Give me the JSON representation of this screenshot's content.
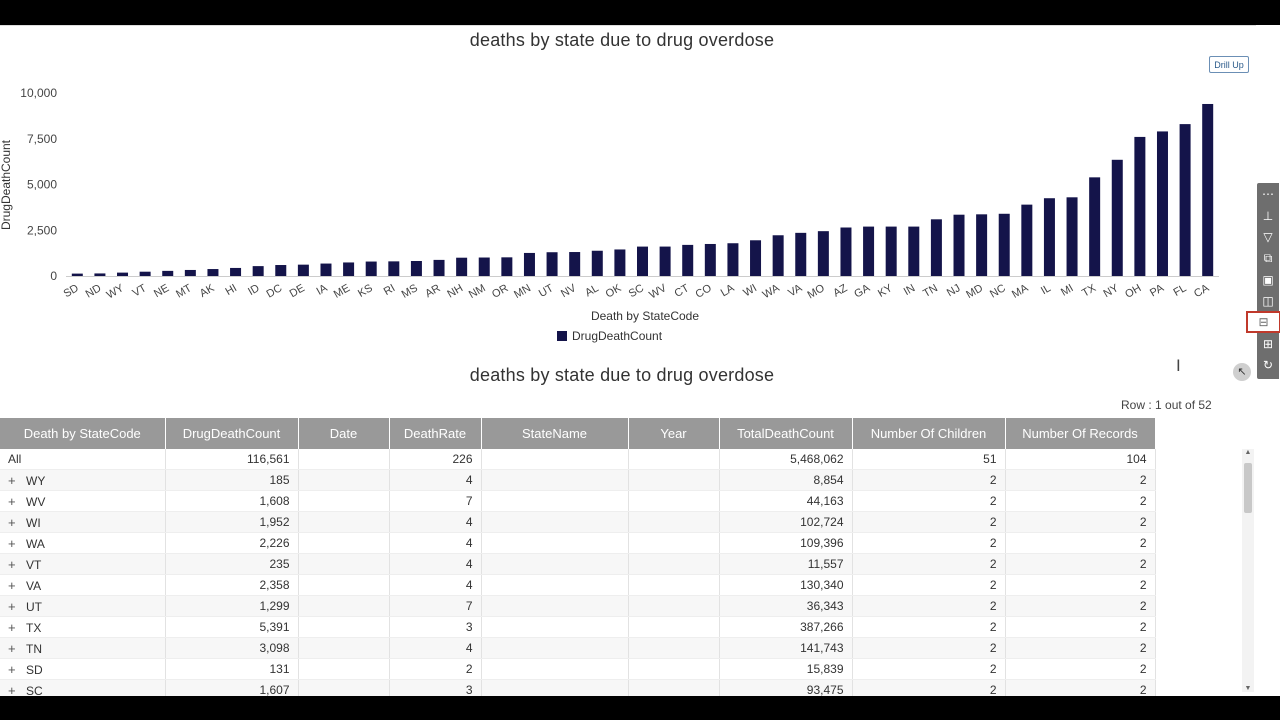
{
  "drill_up_label": "Drill Up",
  "grid_title": "deaths by state due to drug overdose",
  "row_info": "Row : 1 out of 52",
  "toolbar_icons": [
    "grip-icon",
    "pin-icon",
    "filter-icon",
    "export-icon",
    "layers-icon",
    "cube-icon",
    "pivot-icon",
    "grid-icon",
    "refresh-icon"
  ],
  "colors": {
    "bar": "#14144a",
    "header_bg": "#999999",
    "accent_border": "#c0392b"
  },
  "chart_data": {
    "type": "bar",
    "title": "deaths by state due to drug overdose",
    "xlabel": "Death by StateCode",
    "ylabel": "DrugDeathCount",
    "ylim": [
      0,
      10000
    ],
    "yticks": [
      "0",
      "2,500",
      "5,000",
      "7,500",
      "10,000"
    ],
    "legend_position": "bottom",
    "categories": [
      "SD",
      "ND",
      "WY",
      "VT",
      "NE",
      "MT",
      "AK",
      "HI",
      "ID",
      "DC",
      "DE",
      "IA",
      "ME",
      "KS",
      "RI",
      "MS",
      "AR",
      "NH",
      "NM",
      "OR",
      "MN",
      "UT",
      "NV",
      "AL",
      "OK",
      "SC",
      "WV",
      "CT",
      "CO",
      "LA",
      "WI",
      "WA",
      "VA",
      "MO",
      "AZ",
      "GA",
      "KY",
      "IN",
      "TN",
      "NJ",
      "MD",
      "NC",
      "MA",
      "IL",
      "MI",
      "TX",
      "NY",
      "OH",
      "PA",
      "FL",
      "CA"
    ],
    "series": [
      {
        "name": "DrugDeathCount",
        "values": [
          131,
          140,
          185,
          235,
          280,
          330,
          380,
          440,
          540,
          600,
          620,
          680,
          740,
          790,
          800,
          820,
          880,
          1000,
          1010,
          1020,
          1260,
          1299,
          1310,
          1380,
          1450,
          1607,
          1608,
          1700,
          1750,
          1790,
          1952,
          2226,
          2358,
          2450,
          2650,
          2700,
          2700,
          2700,
          3098,
          3350,
          3370,
          3400,
          3900,
          4250,
          4300,
          5391,
          6350,
          7600,
          7900,
          8300,
          9400
        ]
      }
    ]
  },
  "table": {
    "columns": [
      "Death by StateCode",
      "DrugDeathCount",
      "Date",
      "DeathRate",
      "StateName",
      "Year",
      "TotalDeathCount",
      "Number Of Children",
      "Number Of Records"
    ],
    "rows": [
      {
        "code": "All",
        "expand": "",
        "drug": "116,561",
        "date": "",
        "rate": "226",
        "state": "",
        "year": "",
        "total": "5,468,062",
        "children": "51",
        "records": "104"
      },
      {
        "code": "WY",
        "expand": "+",
        "drug": "185",
        "date": "",
        "rate": "4",
        "state": "",
        "year": "",
        "total": "8,854",
        "children": "2",
        "records": "2"
      },
      {
        "code": "WV",
        "expand": "+",
        "drug": "1,608",
        "date": "",
        "rate": "7",
        "state": "",
        "year": "",
        "total": "44,163",
        "children": "2",
        "records": "2"
      },
      {
        "code": "WI",
        "expand": "+",
        "drug": "1,952",
        "date": "",
        "rate": "4",
        "state": "",
        "year": "",
        "total": "102,724",
        "children": "2",
        "records": "2"
      },
      {
        "code": "WA",
        "expand": "+",
        "drug": "2,226",
        "date": "",
        "rate": "4",
        "state": "",
        "year": "",
        "total": "109,396",
        "children": "2",
        "records": "2"
      },
      {
        "code": "VT",
        "expand": "+",
        "drug": "235",
        "date": "",
        "rate": "4",
        "state": "",
        "year": "",
        "total": "11,557",
        "children": "2",
        "records": "2"
      },
      {
        "code": "VA",
        "expand": "+",
        "drug": "2,358",
        "date": "",
        "rate": "4",
        "state": "",
        "year": "",
        "total": "130,340",
        "children": "2",
        "records": "2"
      },
      {
        "code": "UT",
        "expand": "+",
        "drug": "1,299",
        "date": "",
        "rate": "7",
        "state": "",
        "year": "",
        "total": "36,343",
        "children": "2",
        "records": "2"
      },
      {
        "code": "TX",
        "expand": "+",
        "drug": "5,391",
        "date": "",
        "rate": "3",
        "state": "",
        "year": "",
        "total": "387,266",
        "children": "2",
        "records": "2"
      },
      {
        "code": "TN",
        "expand": "+",
        "drug": "3,098",
        "date": "",
        "rate": "4",
        "state": "",
        "year": "",
        "total": "141,743",
        "children": "2",
        "records": "2"
      },
      {
        "code": "SD",
        "expand": "+",
        "drug": "131",
        "date": "",
        "rate": "2",
        "state": "",
        "year": "",
        "total": "15,839",
        "children": "2",
        "records": "2"
      },
      {
        "code": "SC",
        "expand": "+",
        "drug": "1,607",
        "date": "",
        "rate": "3",
        "state": "",
        "year": "",
        "total": "93,475",
        "children": "2",
        "records": "2"
      }
    ]
  }
}
